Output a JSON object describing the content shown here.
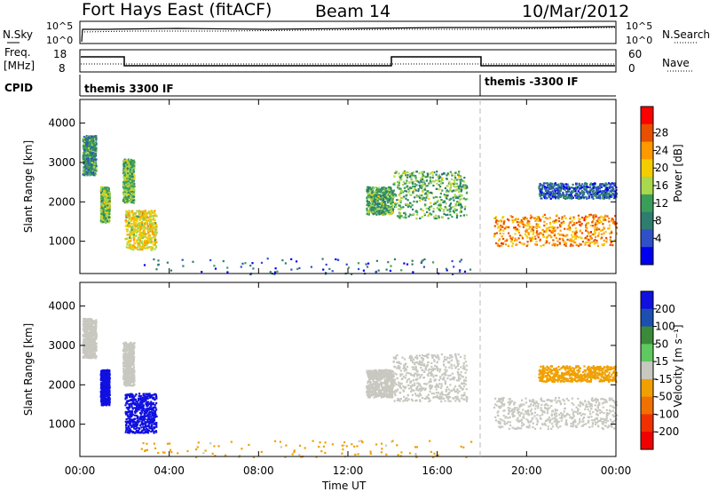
{
  "header": {
    "title": "Fort Hays East (fitACF)",
    "beam": "Beam 14",
    "date": "10/Mar/2012"
  },
  "top_panels": {
    "nsky_label": "N.Sky",
    "nsearch_label": "N.Search",
    "nsky_ticks": [
      "10^5",
      "10^0"
    ],
    "nsearch_ticks": [
      "10^5",
      "10^0"
    ],
    "freq_label_1": "Freq.",
    "freq_label_2": "[MHz]",
    "freq_ticks": [
      "18",
      "8"
    ],
    "nave_label": "Nave",
    "nave_ticks": [
      "60",
      "0"
    ],
    "cpid_label": "CPID",
    "cpid_segments": [
      "themis 3300 IF",
      "themis -3300 IF"
    ]
  },
  "power_colorbar": {
    "label": "Power [dB]",
    "ticks": [
      "28",
      "24",
      "20",
      "16",
      "12",
      "8",
      "4"
    ],
    "colors": [
      "#ff0000",
      "#e85000",
      "#ff9900",
      "#f4cc00",
      "#a8d84e",
      "#3a9e5a",
      "#2e7d6e",
      "#3050c8",
      "#0000f0"
    ]
  },
  "velocity_colorbar": {
    "label": "Velocity [m s⁻¹]",
    "ticks": [
      "200",
      "100",
      "50",
      "15",
      "-15",
      "-50",
      "-100",
      "-200"
    ],
    "colors": [
      "#1010e0",
      "#1c4fb0",
      "#3a8a3a",
      "#5fc85f",
      "#c8c8c0",
      "#f0a000",
      "#f07000",
      "#f03000",
      "#f00000"
    ]
  },
  "chart_data": [
    {
      "type": "heatmap",
      "parameter": "Power",
      "xlabel": "Time UT",
      "ylabel": "Slant Range [km]",
      "x_ticks": [
        "00:00",
        "04:00",
        "08:00",
        "12:00",
        "16:00",
        "20:00",
        "00:00"
      ],
      "x_range_hours": [
        0,
        24
      ],
      "y_ticks": [
        1000,
        2000,
        3000,
        4000
      ],
      "y_range_km": [
        180,
        4600
      ],
      "units": "dB",
      "color_range": [
        0,
        30
      ],
      "echo_regions": [
        {
          "t_start": 0.1,
          "t_end": 0.7,
          "r_min": 2700,
          "r_max": 3700,
          "power_db": 10
        },
        {
          "t_start": 0.9,
          "t_end": 1.3,
          "r_min": 1500,
          "r_max": 2400,
          "power_db": 14
        },
        {
          "t_start": 1.9,
          "t_end": 2.4,
          "r_min": 2000,
          "r_max": 3100,
          "power_db": 13
        },
        {
          "t_start": 2.0,
          "t_end": 3.4,
          "r_min": 800,
          "r_max": 1800,
          "power_db": 18
        },
        {
          "t_start": 12.8,
          "t_end": 14.0,
          "r_min": 1700,
          "r_max": 2400,
          "power_db": 12
        },
        {
          "t_start": 14.0,
          "t_end": 17.3,
          "r_min": 1600,
          "r_max": 2800,
          "power_db": 12
        },
        {
          "t_start": 18.5,
          "t_end": 24.0,
          "r_min": 900,
          "r_max": 1700,
          "power_db": 22
        },
        {
          "t_start": 20.5,
          "t_end": 24.0,
          "r_min": 2100,
          "r_max": 2500,
          "power_db": 6
        },
        {
          "t_start": 2.5,
          "t_end": 17.5,
          "r_min": 180,
          "r_max": 600,
          "power_db": 6
        }
      ]
    },
    {
      "type": "heatmap",
      "parameter": "Velocity",
      "xlabel": "Time UT",
      "ylabel": "Slant Range [km]",
      "x_ticks": [
        "00:00",
        "04:00",
        "08:00",
        "12:00",
        "16:00",
        "20:00",
        "00:00"
      ],
      "x_range_hours": [
        0,
        24
      ],
      "y_ticks": [
        1000,
        2000,
        3000,
        4000
      ],
      "y_range_km": [
        180,
        4600
      ],
      "units": "m s^-1",
      "color_range": [
        -200,
        200
      ],
      "echo_regions": [
        {
          "t_start": 0.1,
          "t_end": 0.7,
          "r_min": 2700,
          "r_max": 3700,
          "velocity": 0
        },
        {
          "t_start": 0.9,
          "t_end": 1.3,
          "r_min": 1500,
          "r_max": 2400,
          "velocity": 220
        },
        {
          "t_start": 1.9,
          "t_end": 2.4,
          "r_min": 2000,
          "r_max": 3100,
          "velocity": 0
        },
        {
          "t_start": 2.0,
          "t_end": 3.4,
          "r_min": 800,
          "r_max": 1800,
          "velocity": 220
        },
        {
          "t_start": 12.8,
          "t_end": 14.0,
          "r_min": 1700,
          "r_max": 2400,
          "velocity": 0
        },
        {
          "t_start": 14.0,
          "t_end": 17.3,
          "r_min": 1600,
          "r_max": 2800,
          "velocity": 0
        },
        {
          "t_start": 18.5,
          "t_end": 24.0,
          "r_min": 900,
          "r_max": 1700,
          "velocity": -5
        },
        {
          "t_start": 20.5,
          "t_end": 24.0,
          "r_min": 2100,
          "r_max": 2500,
          "velocity": -40
        },
        {
          "t_start": 2.5,
          "t_end": 17.5,
          "r_min": 180,
          "r_max": 600,
          "velocity": -30
        }
      ]
    }
  ]
}
